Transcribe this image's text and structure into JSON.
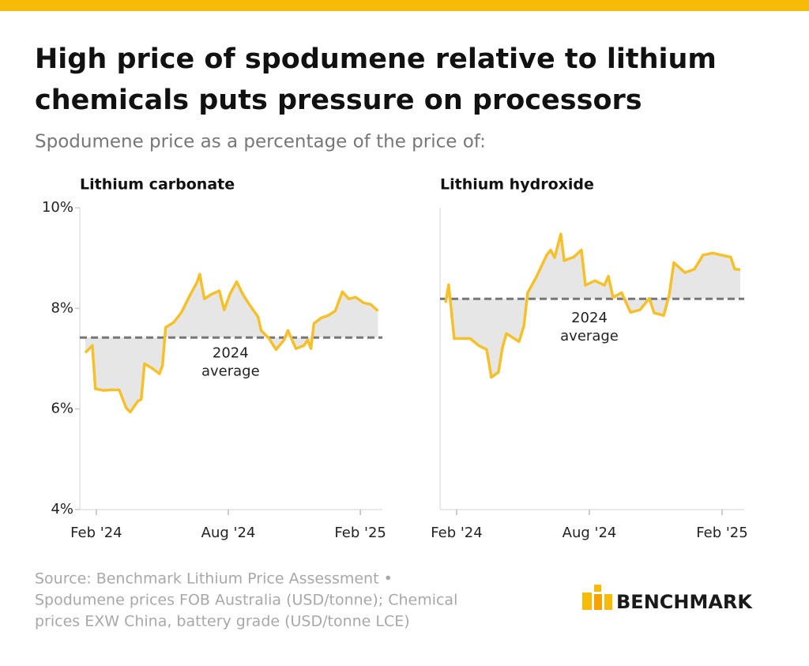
{
  "header": {
    "title": [
      "High price of spodumene relative to lithium",
      "chemicals puts pressure on processors"
    ],
    "subtitle": "Spodumene price as a percentage of the price of:"
  },
  "chart_data": [
    {
      "type": "line",
      "title": "Lithium carbonate",
      "color": "#f5c02a",
      "xlim": [
        0.25,
        14.0
      ],
      "xticks": [
        {
          "value": 1,
          "label": "Feb '24"
        },
        {
          "value": 7,
          "label": "Aug '24"
        },
        {
          "value": 13,
          "label": "Feb '25"
        }
      ],
      "ylim": [
        4,
        10
      ],
      "yticks": [
        {
          "value": 4,
          "label": "4%"
        },
        {
          "value": 6,
          "label": "6%"
        },
        {
          "value": 8,
          "label": "8%"
        },
        {
          "value": 10,
          "label": "10%"
        }
      ],
      "average": {
        "value": 7.42,
        "label": [
          "2024",
          "average"
        ]
      },
      "x": [
        0.5,
        0.82,
        0.96,
        1.32,
        1.68,
        2.04,
        2.36,
        2.54,
        2.9,
        3.04,
        3.19,
        3.54,
        3.87,
        4.01,
        4.15,
        4.51,
        4.87,
        5.23,
        5.59,
        5.7,
        5.91,
        6.23,
        6.59,
        6.81,
        7.09,
        7.38,
        7.67,
        8.03,
        8.35,
        8.49,
        8.85,
        9.17,
        9.53,
        9.71,
        10.07,
        10.43,
        10.61,
        10.75,
        10.89,
        11.22,
        11.54,
        11.86,
        12.18,
        12.47,
        12.79,
        13.15,
        13.47,
        13.8
      ],
      "values": [
        7.12,
        7.26,
        6.4,
        6.37,
        6.38,
        6.38,
        6.02,
        5.94,
        6.16,
        6.19,
        6.9,
        6.81,
        6.7,
        6.87,
        7.62,
        7.72,
        7.92,
        8.24,
        8.53,
        8.68,
        8.19,
        8.28,
        8.35,
        7.97,
        8.3,
        8.53,
        8.27,
        8.03,
        7.83,
        7.56,
        7.4,
        7.18,
        7.37,
        7.56,
        7.2,
        7.26,
        7.37,
        7.2,
        7.7,
        7.81,
        7.86,
        7.95,
        8.33,
        8.19,
        8.22,
        8.11,
        8.08,
        7.95
      ]
    },
    {
      "type": "line",
      "title": "Lithium hydroxide",
      "color": "#f5c02a",
      "xlim": [
        0.25,
        14.0
      ],
      "xticks": [
        {
          "value": 1,
          "label": "Feb '24"
        },
        {
          "value": 7,
          "label": "Aug '24"
        },
        {
          "value": 13,
          "label": "Feb '25"
        }
      ],
      "ylim": [
        4,
        10
      ],
      "average": {
        "value": 8.19,
        "label": [
          "2024",
          "average"
        ]
      },
      "x": [
        0.5,
        0.64,
        0.89,
        1.61,
        2.0,
        2.36,
        2.57,
        2.89,
        3.07,
        3.25,
        3.82,
        4.04,
        4.21,
        4.61,
        5.07,
        5.25,
        5.43,
        5.71,
        5.86,
        6.29,
        6.64,
        6.82,
        7.25,
        7.68,
        7.86,
        8.07,
        8.46,
        8.86,
        9.29,
        9.71,
        9.93,
        10.36,
        10.61,
        10.82,
        11.32,
        11.75,
        12.14,
        12.57,
        12.96,
        13.39,
        13.57,
        13.82
      ],
      "values": [
        8.11,
        8.47,
        7.4,
        7.4,
        7.26,
        7.18,
        6.63,
        6.73,
        7.22,
        7.5,
        7.34,
        7.65,
        8.31,
        8.63,
        9.06,
        9.16,
        9.01,
        9.48,
        8.95,
        9.02,
        9.16,
        8.46,
        8.55,
        8.46,
        8.64,
        8.22,
        8.31,
        7.92,
        7.97,
        8.2,
        7.91,
        7.86,
        8.27,
        8.91,
        8.71,
        8.78,
        9.06,
        9.1,
        9.06,
        9.02,
        8.78,
        8.77
      ]
    }
  ],
  "footer": {
    "source": [
      "Source: Benchmark Lithium Price Assessment •",
      "Spodumene prices FOB Australia (USD/tonne); Chemical",
      "prices EXW China, battery grade (USD/tonne LCE)"
    ],
    "logo": "BENCHMARK"
  }
}
